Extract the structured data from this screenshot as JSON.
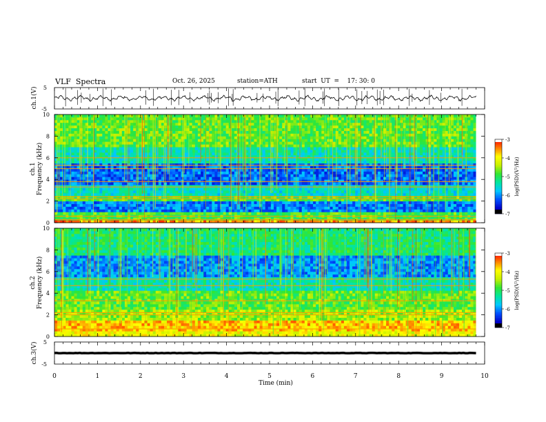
{
  "header": {
    "title": "VLF  Spectra",
    "date": "Oct. 26, 2025",
    "station": "station=ATH",
    "start": "start  UT  =    17: 30: 0"
  },
  "colors": {
    "background": "#ffffff",
    "axis": "#000000",
    "trace": "#000000",
    "colormap": [
      "#000000",
      "#0000c8",
      "#0050ff",
      "#00c8ff",
      "#00e6a0",
      "#32e632",
      "#c8f000",
      "#ffff00",
      "#ff8000",
      "#ff0000",
      "#ffffff"
    ]
  },
  "chart_data": [
    {
      "id": "ch1-waveform",
      "type": "line",
      "ylabel": "ch.1(V)",
      "ylim": [
        -5,
        5
      ],
      "yticks": [
        "5",
        "-5"
      ],
      "xlim": [
        0,
        9.8
      ],
      "approx_mean": 0,
      "approx_amplitude": 1.5,
      "note": "noisy broadband waveform with sparse spikes"
    },
    {
      "id": "ch1-spectrogram",
      "type": "heatmap",
      "ylabel": "ch.1\nFrequency  (kHz)",
      "ylim": [
        0,
        10
      ],
      "yticks": [
        "0",
        "2",
        "4",
        "6",
        "8",
        "10"
      ],
      "xlim": [
        0,
        9.8
      ],
      "colorbar": {
        "label": "log(PSD)(V²/Hz)",
        "range": [
          -7,
          -3
        ],
        "ticks": [
          "-3",
          "-4",
          "-5",
          "-6",
          "-7"
        ]
      },
      "bands": [
        {
          "from": 0.0,
          "to": 0.3,
          "level": -3.6
        },
        {
          "from": 0.3,
          "to": 1.0,
          "level": -5.0
        },
        {
          "from": 1.0,
          "to": 2.0,
          "level": -6.3
        },
        {
          "from": 2.0,
          "to": 2.6,
          "level": -5.0
        },
        {
          "from": 2.6,
          "to": 3.4,
          "level": -5.7
        },
        {
          "from": 3.4,
          "to": 5.4,
          "level": -6.4
        },
        {
          "from": 5.4,
          "to": 7.0,
          "level": -5.6
        },
        {
          "from": 7.0,
          "to": 10.0,
          "level": -4.9
        }
      ],
      "lines": [
        0.3,
        0.6,
        2.2,
        2.4,
        3.3,
        3.8,
        5.0,
        5.3,
        6.0
      ],
      "sferic_rate": 0.22
    },
    {
      "id": "ch2-spectrogram",
      "type": "heatmap",
      "ylabel": "ch.2\nFrequency  (kHz)",
      "ylim": [
        0,
        10
      ],
      "yticks": [
        "0",
        "2",
        "4",
        "6",
        "8",
        "10"
      ],
      "xlim": [
        0,
        9.8
      ],
      "colorbar": {
        "label": "log(PSD)(V²/Hz)",
        "range": [
          -7,
          -3
        ],
        "ticks": [
          "-3",
          "-4",
          "-5",
          "-6",
          "-7"
        ]
      },
      "bands": [
        {
          "from": 0.0,
          "to": 0.4,
          "level": -4.2
        },
        {
          "from": 0.4,
          "to": 1.4,
          "level": -3.8
        },
        {
          "from": 1.4,
          "to": 2.6,
          "level": -4.6
        },
        {
          "from": 2.6,
          "to": 4.3,
          "level": -4.9
        },
        {
          "from": 4.3,
          "to": 5.4,
          "level": -5.6
        },
        {
          "from": 5.4,
          "to": 7.6,
          "level": -6.2
        },
        {
          "from": 7.6,
          "to": 10.0,
          "level": -5.3
        }
      ],
      "lines": [
        0.7,
        2.0,
        2.2,
        3.3,
        4.7,
        5.3
      ],
      "sferic_rate": 0.22
    },
    {
      "id": "ch3-waveform",
      "type": "line",
      "ylabel": "ch.3(V)",
      "ylim": [
        -5,
        5
      ],
      "yticks": [
        "5",
        "-5"
      ],
      "xlim": [
        0,
        9.8
      ],
      "approx_mean": 0,
      "approx_amplitude": 0.15,
      "note": "flat thick line near 0 V"
    }
  ],
  "xaxis": {
    "label": "Time  (min)",
    "ticks": [
      "0",
      "1",
      "2",
      "3",
      "4",
      "5",
      "6",
      "7",
      "8",
      "9",
      "10"
    ],
    "range": [
      0,
      10
    ]
  }
}
